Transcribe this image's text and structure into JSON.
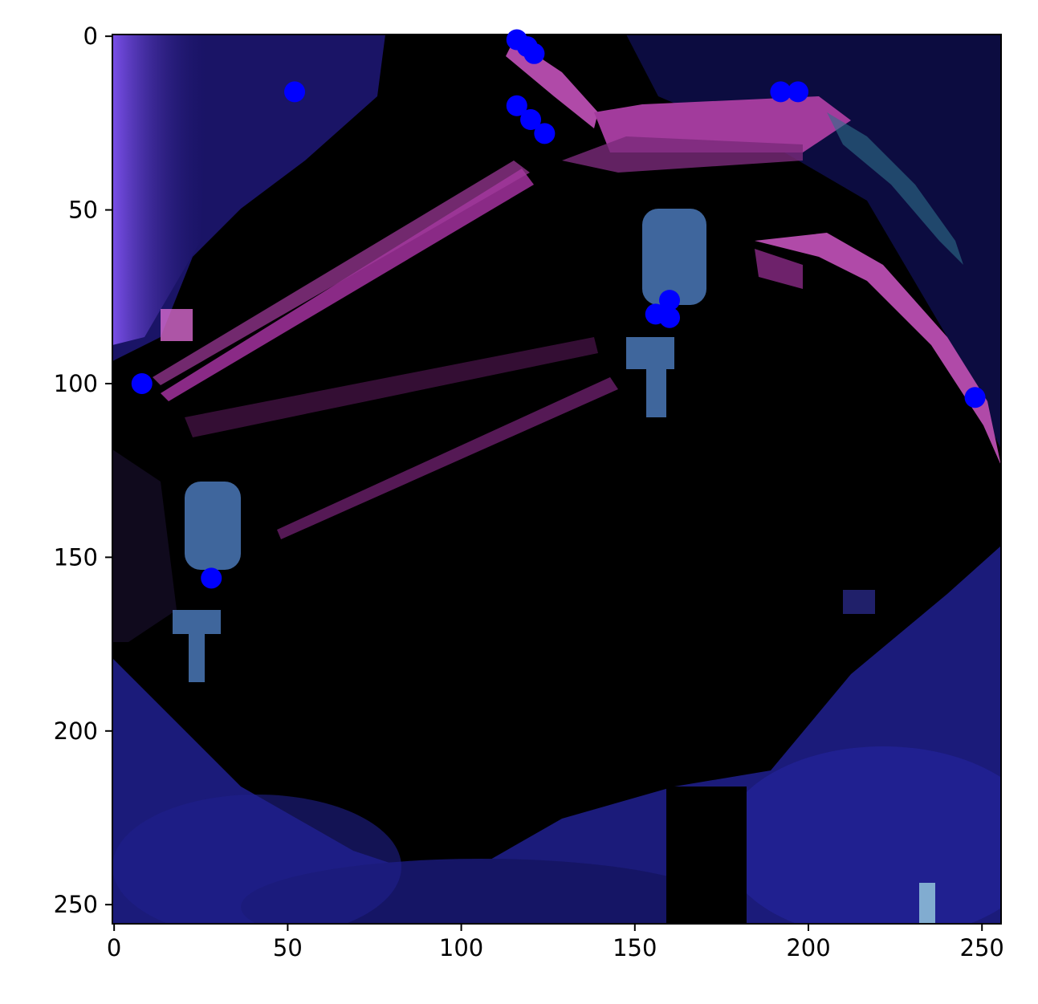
{
  "chart_data": {
    "type": "scatter",
    "title": "",
    "xlabel": "",
    "ylabel": "",
    "xlim": [
      0,
      256
    ],
    "ylim": [
      256,
      0
    ],
    "y_inverted": true,
    "grid": false,
    "legend": "none",
    "background": "image",
    "x_ticks": [
      0,
      50,
      100,
      150,
      200,
      250
    ],
    "y_ticks": [
      0,
      50,
      100,
      150,
      200,
      250
    ],
    "x_tick_labels": [
      "0",
      "50",
      "100",
      "150",
      "200",
      "250"
    ],
    "y_tick_labels": [
      "0",
      "50",
      "100",
      "150",
      "200",
      "250"
    ],
    "series": [
      {
        "color": "#0000ff",
        "points": [
          {
            "x": 116,
            "y": 1
          },
          {
            "x": 119,
            "y": 3
          },
          {
            "x": 121,
            "y": 5
          },
          {
            "x": 52,
            "y": 16
          },
          {
            "x": 192,
            "y": 16
          },
          {
            "x": 197,
            "y": 16
          },
          {
            "x": 116,
            "y": 20
          },
          {
            "x": 120,
            "y": 24
          },
          {
            "x": 124,
            "y": 28
          },
          {
            "x": 160,
            "y": 76
          },
          {
            "x": 156,
            "y": 80
          },
          {
            "x": 160,
            "y": 81
          },
          {
            "x": 8,
            "y": 100
          },
          {
            "x": 248,
            "y": 104
          },
          {
            "x": 28,
            "y": 156
          }
        ]
      }
    ]
  }
}
